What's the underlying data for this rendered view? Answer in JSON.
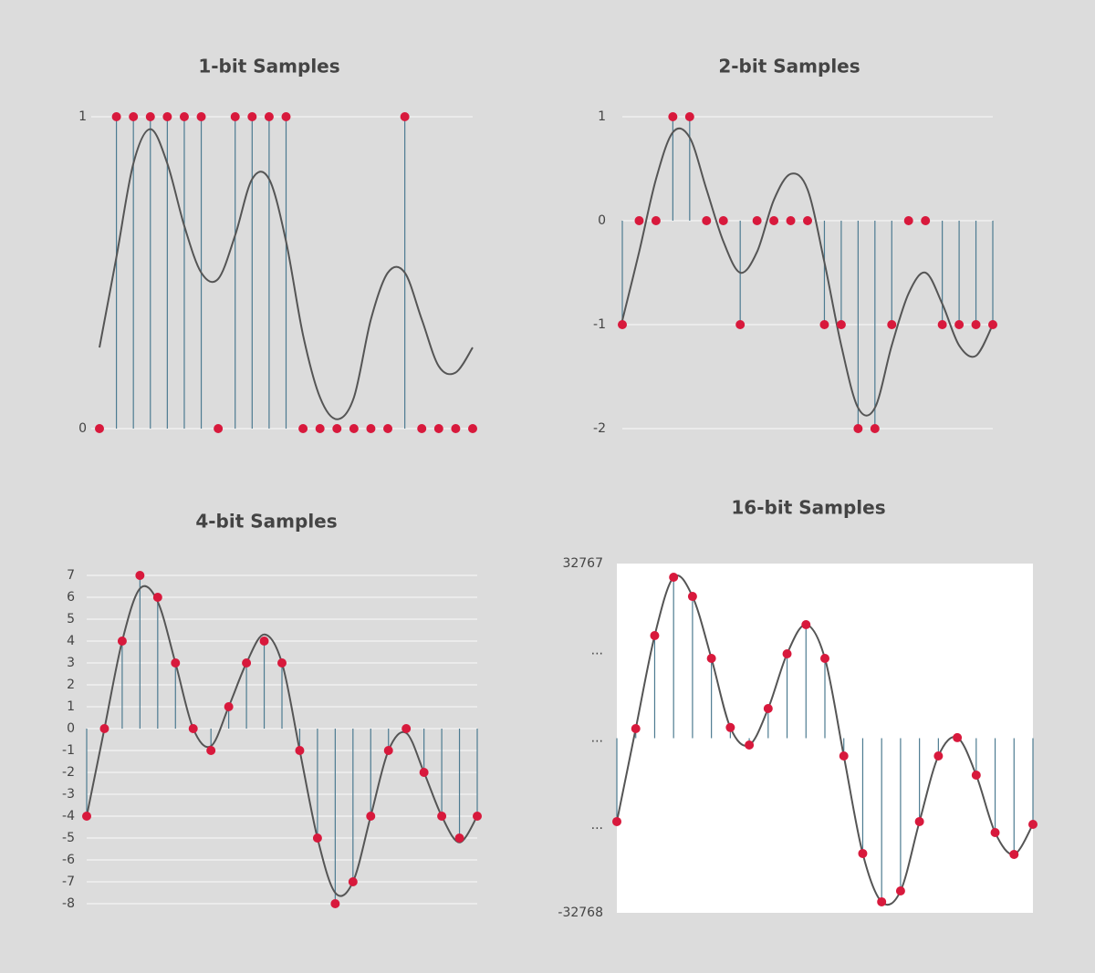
{
  "chart_data": [
    {
      "type": "stem",
      "title": "1-bit Samples",
      "values": [
        0,
        1,
        1,
        1,
        1,
        1,
        1,
        0,
        1,
        1,
        1,
        1,
        0,
        0,
        0,
        0,
        0,
        0,
        1,
        0,
        0,
        0,
        0
      ],
      "signal": [
        0.26,
        0.55,
        0.85,
        0.96,
        0.85,
        0.65,
        0.5,
        0.48,
        0.62,
        0.8,
        0.8,
        0.6,
        0.3,
        0.1,
        0.03,
        0.1,
        0.35,
        0.5,
        0.5,
        0.35,
        0.2,
        0.18,
        0.26
      ],
      "ylim": [
        0,
        1
      ],
      "yticks": [
        0,
        1
      ],
      "grid": true,
      "color": "#d8193c",
      "stem_color": "#4d7b91",
      "signal_color": "#555555"
    },
    {
      "type": "stem",
      "title": "2-bit Samples",
      "values": [
        -1,
        0,
        0,
        1,
        1,
        0,
        0,
        -1,
        0,
        0,
        0,
        0,
        -1,
        -1,
        -2,
        -2,
        -1,
        0,
        0,
        -1,
        -1,
        -1,
        -1
      ],
      "signal": [
        -0.96,
        -0.3,
        0.4,
        0.85,
        0.8,
        0.3,
        -0.2,
        -0.5,
        -0.3,
        0.2,
        0.45,
        0.3,
        -0.4,
        -1.2,
        -1.8,
        -1.8,
        -1.2,
        -0.7,
        -0.5,
        -0.8,
        -1.2,
        -1.3,
        -1.0
      ],
      "ylim": [
        -2,
        1
      ],
      "yticks": [
        -2,
        -1,
        0,
        1
      ],
      "grid": true,
      "color": "#d8193c",
      "stem_color": "#4d7b91",
      "signal_color": "#555555"
    },
    {
      "type": "stem",
      "title": "4-bit Samples",
      "values": [
        -4,
        0,
        4,
        7,
        6,
        3,
        0,
        -1,
        1,
        3,
        4,
        3,
        -1,
        -5,
        -8,
        -7,
        -4,
        -1,
        0,
        -2,
        -4,
        -5,
        -4
      ],
      "signal": [
        -4,
        0,
        4,
        6.4,
        5.8,
        3,
        0,
        -0.8,
        1,
        3,
        4.3,
        3,
        -1,
        -5,
        -7.5,
        -7,
        -4,
        -1,
        -0.2,
        -2,
        -4,
        -5.2,
        -4
      ],
      "ylim": [
        -8,
        7
      ],
      "yticks": [
        -8,
        -7,
        -6,
        -5,
        -4,
        -3,
        -2,
        -1,
        0,
        1,
        2,
        3,
        4,
        5,
        6,
        7
      ],
      "grid": true,
      "color": "#d8193c",
      "stem_color": "#4d7b91",
      "signal_color": "#555555"
    },
    {
      "type": "stem",
      "title": "16-bit Samples",
      "values": [
        -15650,
        1800,
        19250,
        30200,
        26600,
        14970,
        2000,
        -1280,
        5560,
        15830,
        21300,
        14970,
        -3340,
        -21640,
        -30710,
        -28660,
        -15650,
        -3340,
        100,
        -6930,
        -17710,
        -21810,
        -16170
      ],
      "ylim": [
        -32768,
        32767
      ],
      "yticks": [
        -32768,
        {
          "value": -16384,
          "label": "..."
        },
        {
          "value": 0,
          "label": "..."
        },
        {
          "value": 16384,
          "label": "..."
        },
        32767
      ],
      "grid": false,
      "background": "#ffffff",
      "color": "#d8193c",
      "stem_color": "#4d7b91",
      "signal_color": "#555555"
    }
  ]
}
